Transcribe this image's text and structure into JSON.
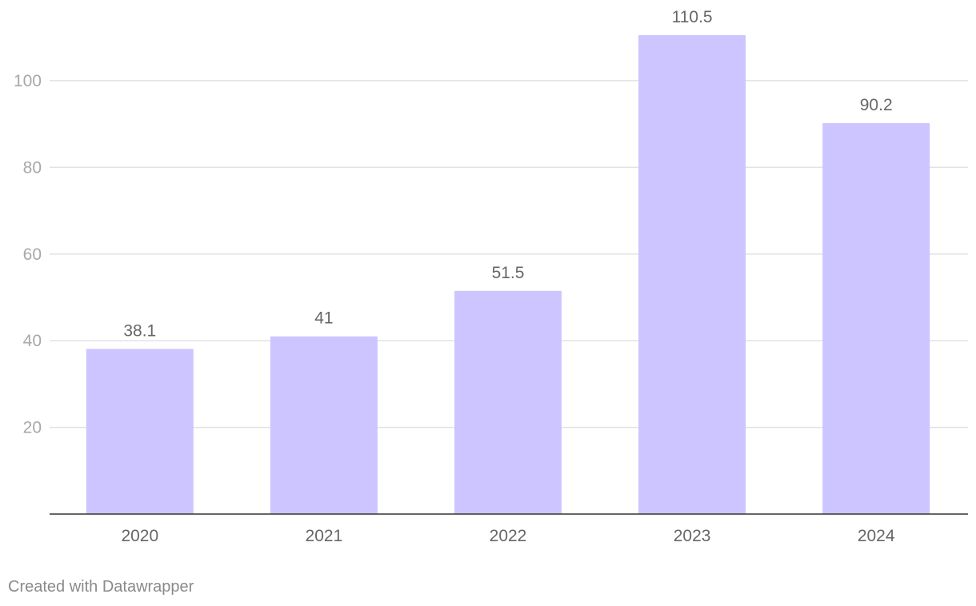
{
  "chart_data": {
    "type": "bar",
    "categories": [
      "2020",
      "2021",
      "2022",
      "2023",
      "2024"
    ],
    "values": [
      38.1,
      41,
      51.5,
      110.5,
      90.2
    ],
    "value_labels": [
      "38.1",
      "41",
      "51.5",
      "110.5",
      "90.2"
    ],
    "y_ticks": [
      20,
      40,
      60,
      80,
      100
    ],
    "ylim": [
      0,
      110.5
    ],
    "grid": true,
    "bar_color": "#ccc5ff"
  },
  "footer": {
    "credit": "Created with Datawrapper"
  }
}
